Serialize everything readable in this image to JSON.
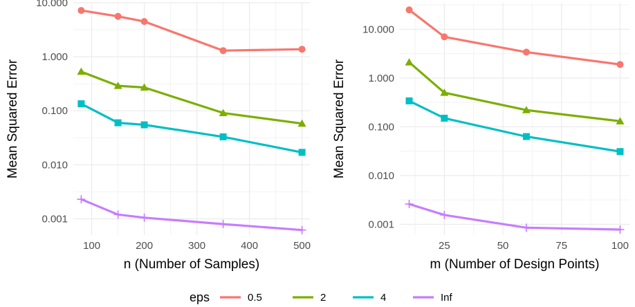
{
  "legend": {
    "title": "eps",
    "position": "bottom",
    "entries": [
      {
        "label": "0.5",
        "color": "#F8766D",
        "shape": "circle"
      },
      {
        "label": "2",
        "color": "#7CAE00",
        "shape": "triangle"
      },
      {
        "label": "4",
        "color": "#00BFC4",
        "shape": "square"
      },
      {
        "label": "Inf",
        "color": "#C77CFF",
        "shape": "plus"
      }
    ]
  },
  "chart_data": [
    {
      "type": "line",
      "xlabel": "n (Number of Samples)",
      "ylabel": "Mean Squared Error",
      "y_scale": "log10",
      "xlim": [
        65,
        515
      ],
      "ylim": [
        0.0005,
        10
      ],
      "x_ticks": [
        100,
        200,
        300,
        400,
        500
      ],
      "x_tick_labels": [
        "100",
        "200",
        "300",
        "400",
        "500"
      ],
      "y_ticks": [
        0.001,
        0.01,
        0.1,
        1,
        10
      ],
      "y_tick_labels": [
        "0.001",
        "0.010",
        "0.100",
        "1.000",
        "10.000"
      ],
      "grid": true,
      "x": [
        80,
        150,
        200,
        350,
        500
      ],
      "series": [
        {
          "name": "0.5",
          "values": [
            7.2,
            5.6,
            4.5,
            1.3,
            1.38
          ]
        },
        {
          "name": "2",
          "values": [
            0.53,
            0.29,
            0.27,
            0.091,
            0.058
          ]
        },
        {
          "name": "4",
          "values": [
            0.135,
            0.06,
            0.055,
            0.033,
            0.017
          ]
        },
        {
          "name": "Inf",
          "values": [
            0.0023,
            0.0012,
            0.00105,
            0.0008,
            0.00062
          ]
        }
      ]
    },
    {
      "type": "line",
      "xlabel": "m (Number of Design Points)",
      "ylabel": "Mean Squared Error",
      "y_scale": "log10",
      "xlim": [
        6,
        104
      ],
      "ylim": [
        0.0006,
        35
      ],
      "x_ticks": [
        25,
        50,
        75,
        100
      ],
      "x_tick_labels": [
        "25",
        "50",
        "75",
        "100"
      ],
      "y_ticks": [
        0.001,
        0.01,
        0.1,
        1,
        10
      ],
      "y_tick_labels": [
        "0.001",
        "0.010",
        "0.100",
        "1.000",
        "10.000"
      ],
      "grid": true,
      "x": [
        10,
        25,
        60,
        100
      ],
      "series": [
        {
          "name": "0.5",
          "values": [
            25,
            7.0,
            3.4,
            1.9
          ]
        },
        {
          "name": "2",
          "values": [
            2.1,
            0.5,
            0.22,
            0.13
          ]
        },
        {
          "name": "4",
          "values": [
            0.34,
            0.15,
            0.063,
            0.031
          ]
        },
        {
          "name": "Inf",
          "values": [
            0.0026,
            0.00155,
            0.00085,
            0.00078
          ]
        }
      ]
    }
  ]
}
